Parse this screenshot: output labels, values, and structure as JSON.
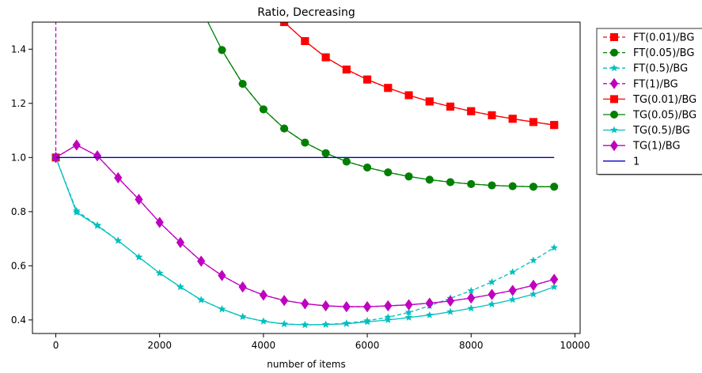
{
  "chart_data": {
    "type": "line",
    "title": "Ratio, Decreasing",
    "xlabel": "number of items",
    "ylabel": "",
    "xlim": [
      -450,
      10100
    ],
    "ylim": [
      0.35,
      1.5
    ],
    "xticks": [
      0,
      2000,
      4000,
      6000,
      8000,
      10000
    ],
    "xtick_labels": [
      "0",
      "2000",
      "4000",
      "6000",
      "8000",
      "10000"
    ],
    "yticks": [
      0.4,
      0.6,
      0.8,
      1.0,
      1.2,
      1.4
    ],
    "ytick_labels": [
      "0.4",
      "0.6",
      "0.8",
      "1.0",
      "1.2",
      "1.4"
    ],
    "grid": false,
    "legend_position": "outside-top-right",
    "x": [
      0,
      400,
      800,
      1200,
      1600,
      2000,
      2400,
      2800,
      3200,
      3600,
      4000,
      4400,
      4800,
      5200,
      5600,
      6000,
      6400,
      6800,
      7200,
      7600,
      8000,
      8400,
      8800,
      9200,
      9600
    ],
    "series": [
      {
        "name": "FT(0.01)/BG",
        "color": "#ff0000",
        "dash": true,
        "marker": "square",
        "values": [
          1.0,
          null,
          null,
          null,
          null,
          null,
          null,
          null,
          null,
          null,
          null,
          1.5,
          1.43,
          1.37,
          1.325,
          1.288,
          1.257,
          1.23,
          1.207,
          1.188,
          1.171,
          1.156,
          1.143,
          1.131,
          1.12
        ]
      },
      {
        "name": "FT(0.05)/BG",
        "color": "#008000",
        "dash": true,
        "marker": "circle",
        "values": [
          1.0,
          null,
          null,
          null,
          null,
          null,
          null,
          null,
          1.397,
          1.272,
          1.178,
          1.107,
          1.055,
          1.016,
          0.985,
          0.963,
          0.945,
          0.93,
          0.918,
          0.909,
          0.902,
          0.897,
          0.894,
          0.892,
          0.892
        ]
      },
      {
        "name": "FT(0.5)/BG",
        "color": "#00bfbf",
        "dash": true,
        "marker": "star",
        "values": [
          1.0,
          0.803,
          0.75,
          0.693,
          0.632,
          0.573,
          0.522,
          0.474,
          0.44,
          0.412,
          0.395,
          0.385,
          0.382,
          0.383,
          0.388,
          0.397,
          0.41,
          0.428,
          0.452,
          0.48,
          0.508,
          0.54,
          0.577,
          0.62,
          0.667
        ]
      },
      {
        "name": "FT(1)/BG",
        "color": "#bf00bf",
        "dash": true,
        "marker": "diamond",
        "values": [
          1.0,
          1.046,
          1.006,
          0.925,
          0.845,
          0.76,
          0.686,
          0.617,
          0.564,
          0.522,
          0.492,
          0.472,
          0.46,
          0.452,
          0.449,
          0.449,
          0.452,
          0.456,
          0.462,
          0.47,
          0.481,
          0.494,
          0.509,
          0.528,
          0.55
        ]
      },
      {
        "name": "TG(0.01)/BG",
        "color": "#ff0000",
        "dash": false,
        "marker": "square",
        "values": [
          null,
          null,
          null,
          null,
          null,
          null,
          null,
          null,
          null,
          null,
          null,
          1.5,
          1.43,
          1.37,
          1.325,
          1.288,
          1.257,
          1.23,
          1.207,
          1.188,
          1.171,
          1.156,
          1.143,
          1.131,
          1.12
        ]
      },
      {
        "name": "TG(0.05)/BG",
        "color": "#008000",
        "dash": false,
        "marker": "circle",
        "values": [
          null,
          null,
          null,
          null,
          null,
          null,
          null,
          null,
          1.397,
          1.272,
          1.178,
          1.107,
          1.055,
          1.016,
          0.985,
          0.963,
          0.945,
          0.93,
          0.918,
          0.909,
          0.902,
          0.897,
          0.894,
          0.892,
          0.892
        ]
      },
      {
        "name": "TG(0.5)/BG",
        "color": "#00bfbf",
        "dash": false,
        "marker": "star",
        "values": [
          1.0,
          0.797,
          0.748,
          0.693,
          0.632,
          0.573,
          0.522,
          0.474,
          0.44,
          0.412,
          0.395,
          0.385,
          0.382,
          0.383,
          0.386,
          0.393,
          0.4,
          0.409,
          0.418,
          0.43,
          0.443,
          0.458,
          0.475,
          0.495,
          0.522
        ]
      },
      {
        "name": "TG(1)/BG",
        "color": "#bf00bf",
        "dash": false,
        "marker": "diamond",
        "values": [
          1.0,
          1.046,
          1.006,
          0.925,
          0.845,
          0.76,
          0.686,
          0.617,
          0.564,
          0.522,
          0.492,
          0.472,
          0.46,
          0.452,
          0.449,
          0.449,
          0.452,
          0.456,
          0.462,
          0.47,
          0.481,
          0.494,
          0.509,
          0.528,
          0.55
        ]
      },
      {
        "name": "1",
        "color": "#0000bf",
        "dash": false,
        "marker": "none",
        "values": [
          1,
          1,
          1,
          1,
          1,
          1,
          1,
          1,
          1,
          1,
          1,
          1,
          1,
          1,
          1,
          1,
          1,
          1,
          1,
          1,
          1,
          1,
          1,
          1,
          1
        ]
      }
    ]
  }
}
